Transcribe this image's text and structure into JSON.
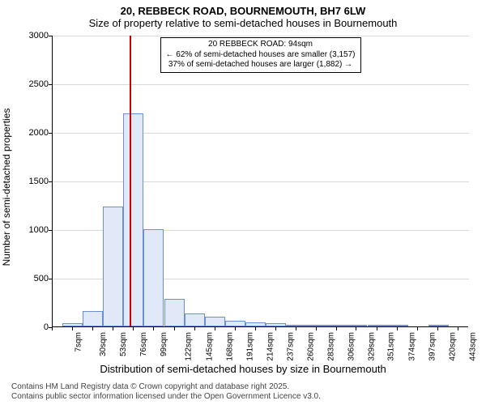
{
  "title_line1": "20, REBBECK ROAD, BOURNEMOUTH, BH7 6LW",
  "title_line2": "Size of property relative to semi-detached houses in Bournemouth",
  "ylabel": "Number of semi-detached properties",
  "xlabel": "Distribution of semi-detached houses by size in Bournemouth",
  "chart": {
    "type": "histogram",
    "ylim": [
      0,
      3000
    ],
    "ytick_step": 500,
    "background_color": "#ffffff",
    "grid_color": "#d9d9d9",
    "bar_fill": "#e1e9f8",
    "bar_stroke": "#6a8fd8",
    "refline_color": "#cc0000",
    "refline_x": 94,
    "x_min": 7,
    "x_max": 478,
    "x_ticks": [
      7,
      30,
      53,
      76,
      99,
      122,
      145,
      168,
      191,
      214,
      237,
      260,
      283,
      306,
      329,
      351,
      374,
      397,
      420,
      443,
      466
    ],
    "x_tick_suffix": "sqm",
    "bars": [
      {
        "x0": 18,
        "x1": 41,
        "y": 30
      },
      {
        "x0": 41,
        "x1": 64,
        "y": 160
      },
      {
        "x0": 64,
        "x1": 87,
        "y": 1235
      },
      {
        "x0": 87,
        "x1": 110,
        "y": 2190
      },
      {
        "x0": 110,
        "x1": 133,
        "y": 1000
      },
      {
        "x0": 133,
        "x1": 156,
        "y": 280
      },
      {
        "x0": 156,
        "x1": 179,
        "y": 135
      },
      {
        "x0": 179,
        "x1": 202,
        "y": 100
      },
      {
        "x0": 202,
        "x1": 225,
        "y": 60
      },
      {
        "x0": 225,
        "x1": 248,
        "y": 40
      },
      {
        "x0": 248,
        "x1": 271,
        "y": 30
      },
      {
        "x0": 271,
        "x1": 294,
        "y": 10
      },
      {
        "x0": 294,
        "x1": 317,
        "y": 15
      },
      {
        "x0": 317,
        "x1": 340,
        "y": 5
      },
      {
        "x0": 340,
        "x1": 363,
        "y": 8
      },
      {
        "x0": 363,
        "x1": 386,
        "y": 3
      },
      {
        "x0": 386,
        "x1": 409,
        "y": 3
      },
      {
        "x0": 432,
        "x1": 455,
        "y": 8
      }
    ]
  },
  "annotation": {
    "line1": "20 REBBECK ROAD: 94sqm",
    "line2": "← 62% of semi-detached houses are smaller (3,157)",
    "line3": "37% of semi-detached houses are larger (1,882) →"
  },
  "attribution": {
    "line1": "Contains HM Land Registry data © Crown copyright and database right 2025.",
    "line2": "Contains public sector information licensed under the Open Government Licence v3.0."
  }
}
